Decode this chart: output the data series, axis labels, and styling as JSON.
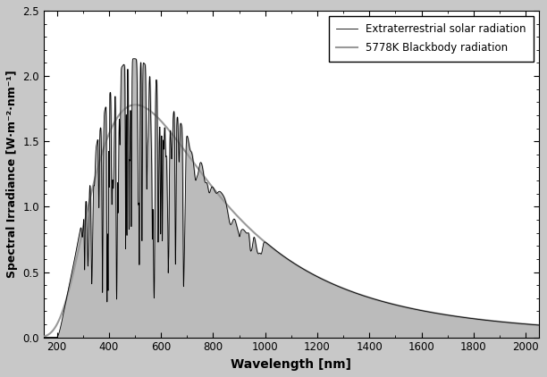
{
  "title": "",
  "xlabel": "Wavelength [nm]",
  "ylabel": "Spectral Irradiance [W·m⁻²·nm⁻¹]",
  "xlim": [
    150,
    2050
  ],
  "ylim": [
    0,
    2.5
  ],
  "xticks": [
    200,
    400,
    600,
    800,
    1000,
    1200,
    1400,
    1600,
    1800,
    2000
  ],
  "yticks": [
    0,
    0.5,
    1.0,
    1.5,
    2.0,
    2.5
  ],
  "legend_solar": "Extraterrestrial solar radiation",
  "legend_bb": "5778K Blackbody radiation",
  "solar_color": "#000000",
  "bb_color": "#999999",
  "fill_color": "#bbbbbb",
  "fill_alpha": 1.0,
  "background_color": "#ffffff",
  "fig_background": "#ffffff",
  "outer_background": "#c8c8c8",
  "T_bb": 5778,
  "target_bb_peak": 1.78,
  "target_solar_peak": 2.15
}
